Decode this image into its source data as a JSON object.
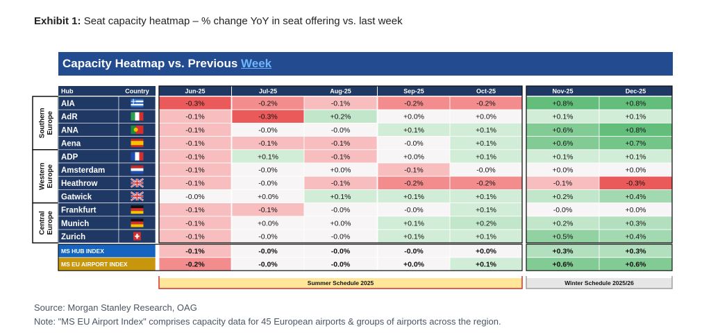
{
  "exhibit_label": "Exhibit 1:",
  "exhibit_title": "Seat capacity heatmap – % change YoY in seat offering vs. last week",
  "banner": {
    "title": "Capacity Heatmap vs. Previous",
    "title_link": "Week"
  },
  "footer": {
    "source": "Source: Morgan Stanley Research, OAG",
    "note": "Note: \"MS EU Airport Index\" comprises capacity data for 45 European airports & groups of airports across the region."
  },
  "colors": {
    "header_bg": "#1f3864",
    "banner_bg": "#234b8f",
    "hub_index_bg": "#1565c0",
    "eu_index_bg": "#c8960c",
    "summer_bg": "#ffe699",
    "summer_border": "#d32f2f",
    "winter_bg": "#e7e6e6"
  },
  "chart_data": {
    "type": "heatmap",
    "title": "Capacity Heatmap vs. Previous Week",
    "header": {
      "hub": "Hub",
      "country": "Country"
    },
    "months": [
      "Jun-25",
      "Jul-25",
      "Aug-25",
      "Sep-25",
      "Oct-25",
      "Nov-25",
      "Dec-25"
    ],
    "groups": [
      {
        "name_lines": [
          "Southern",
          "Europe"
        ],
        "rows": [
          0,
          1,
          2,
          3
        ]
      },
      {
        "name_lines": [
          "Western",
          "Europe"
        ],
        "rows": [
          4,
          5,
          6,
          7
        ]
      },
      {
        "name_lines": [
          "Central",
          "Europe"
        ],
        "rows": [
          8,
          9,
          10
        ]
      }
    ],
    "rows": [
      {
        "hub": "AIA",
        "country": "Greece",
        "flag": "greece-flag-icon",
        "values": [
          "-0.3%",
          "-0.2%",
          "-0.1%",
          "-0.2%",
          "-0.2%",
          "+0.8%",
          "+0.8%"
        ]
      },
      {
        "hub": "AdR",
        "country": "Italy",
        "flag": "italy-flag-icon",
        "values": [
          "-0.1%",
          "-0.3%",
          "+0.2%",
          "+0.0%",
          "+0.0%",
          "+0.1%",
          "+0.1%"
        ]
      },
      {
        "hub": "ANA",
        "country": "Portugal",
        "flag": "portugal-flag-icon",
        "values": [
          "-0.1%",
          "-0.0%",
          "-0.0%",
          "+0.1%",
          "+0.1%",
          "+0.6%",
          "+0.8%"
        ]
      },
      {
        "hub": "Aena",
        "country": "Spain",
        "flag": "spain-flag-icon",
        "values": [
          "-0.1%",
          "-0.1%",
          "-0.1%",
          "-0.0%",
          "+0.1%",
          "+0.6%",
          "+0.7%"
        ]
      },
      {
        "hub": "ADP",
        "country": "France",
        "flag": "france-flag-icon",
        "values": [
          "-0.1%",
          "+0.1%",
          "-0.1%",
          "+0.0%",
          "+0.1%",
          "+0.1%",
          "+0.1%"
        ]
      },
      {
        "hub": "Amsterdam",
        "country": "Netherlands",
        "flag": "netherlands-flag-icon",
        "values": [
          "-0.1%",
          "-0.0%",
          "+0.0%",
          "-0.1%",
          "-0.0%",
          "+0.0%",
          "+0.0%"
        ]
      },
      {
        "hub": "Heathrow",
        "country": "United Kingdom",
        "flag": "uk-flag-icon",
        "values": [
          "-0.1%",
          "-0.0%",
          "-0.1%",
          "-0.2%",
          "-0.2%",
          "-0.1%",
          "-0.3%"
        ]
      },
      {
        "hub": "Gatwick",
        "country": "United Kingdom",
        "flag": "uk-flag-icon",
        "values": [
          "-0.0%",
          "+0.0%",
          "+0.1%",
          "+0.1%",
          "+0.1%",
          "+0.2%",
          "+0.4%"
        ]
      },
      {
        "hub": "Frankfurt",
        "country": "Germany",
        "flag": "germany-flag-icon",
        "values": [
          "-0.1%",
          "-0.1%",
          "-0.0%",
          "-0.0%",
          "+0.1%",
          "-0.0%",
          "+0.0%"
        ]
      },
      {
        "hub": "Munich",
        "country": "Germany",
        "flag": "germany-flag-icon",
        "values": [
          "-0.1%",
          "+0.0%",
          "+0.0%",
          "+0.1%",
          "+0.2%",
          "+0.2%",
          "+0.3%"
        ]
      },
      {
        "hub": "Zurich",
        "country": "Switzerland",
        "flag": "switzerland-flag-icon",
        "values": [
          "-0.1%",
          "-0.0%",
          "-0.0%",
          "+0.1%",
          "+0.1%",
          "+0.5%",
          "+0.4%"
        ]
      }
    ],
    "index_rows": [
      {
        "label": "MS HUB INDEX",
        "values": [
          "-0.1%",
          "-0.0%",
          "-0.0%",
          "-0.0%",
          "+0.0%",
          "+0.3%",
          "+0.3%"
        ]
      },
      {
        "label": "MS EU AIRPORT INDEX",
        "values": [
          "-0.2%",
          "-0.0%",
          "-0.0%",
          "+0.0%",
          "+0.1%",
          "+0.6%",
          "+0.6%"
        ]
      }
    ],
    "schedules": [
      {
        "label": "Summer Schedule 2025",
        "months": [
          0,
          4
        ]
      },
      {
        "label": "Winter Schedule 2025/26",
        "months": [
          5,
          6
        ]
      }
    ]
  }
}
